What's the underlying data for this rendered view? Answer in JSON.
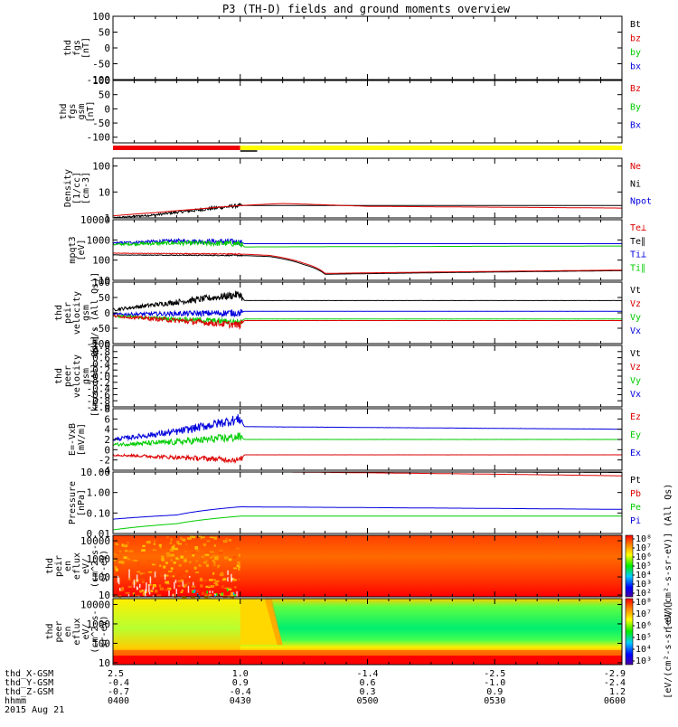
{
  "title": "P3 (TH-D) fields and ground moments overview",
  "chart_data": {
    "type": "line",
    "x_tick_labels": [
      "0400",
      "0430",
      "0500",
      "0530",
      "0600"
    ],
    "panels": [
      {
        "id": "fgs",
        "ylabel": [
          "thd",
          "fgs",
          "[nT]"
        ],
        "ylim": [
          -100,
          100
        ],
        "yscale": "linear",
        "yticks": [
          "100",
          "50",
          "0",
          "-50",
          "-100"
        ],
        "legend": [
          {
            "name": "Bt",
            "color": "#000000"
          },
          {
            "name": "bz",
            "color": "#dd0000"
          },
          {
            "name": "by",
            "color": "#00cc00"
          },
          {
            "name": "bx",
            "color": "#0000dd"
          }
        ],
        "series": []
      },
      {
        "id": "fgsgsm",
        "ylabel": [
          "thd",
          "fgs",
          "gsm",
          "[nT]"
        ],
        "ylim": [
          -120,
          100
        ],
        "yscale": "linear",
        "yticks": [
          "100",
          "50",
          "0",
          "-50",
          "-100"
        ],
        "legend": [
          {
            "name": "Bz",
            "color": "#dd0000"
          },
          {
            "name": "By",
            "color": "#00cc00"
          },
          {
            "name": "Bx",
            "color": "#0000dd"
          }
        ],
        "series": []
      },
      {
        "id": "density",
        "ylabel": [
          "Density",
          "[1/cc]",
          "[cm-3]"
        ],
        "ylim": [
          1,
          200
        ],
        "yscale": "log",
        "yticks": [
          "100",
          "10",
          "1"
        ],
        "legend": [
          {
            "name": "Ne",
            "color": "#dd0000"
          },
          {
            "name": "Ni",
            "color": "#000000"
          },
          {
            "name": "Npot",
            "color": "#0000dd"
          }
        ],
        "series": [
          {
            "name": "Ni",
            "color": "#000000",
            "x": [
              0,
              10,
              20,
              30
            ],
            "y": [
              1.0,
              1.3,
              2.0,
              3.0
            ],
            "noise": 0.05
          },
          {
            "name": "Ne",
            "color": "#dd0000",
            "x": [
              0,
              10,
              20,
              30,
              40,
              60,
              120
            ],
            "y": [
              1.2,
              1.6,
              2.2,
              3.0,
              3.6,
              2.8,
              2.4
            ],
            "noise": 0
          }
        ]
      },
      {
        "id": "temp",
        "ylabel": [
          "mpqt3",
          "[eV]"
        ],
        "ylim": [
          10,
          10000
        ],
        "yscale": "log",
        "yticks": [
          "10000",
          "1000",
          "100",
          "10"
        ],
        "legend": [
          {
            "name": "Te⊥",
            "color": "#dd0000"
          },
          {
            "name": "Te∥",
            "color": "#000000"
          },
          {
            "name": "Ti⊥",
            "color": "#0000dd"
          },
          {
            "name": "Ti∥",
            "color": "#00cc00"
          }
        ],
        "series": [
          {
            "name": "Ti⊥",
            "color": "#0000dd",
            "x": [
              0,
              15,
              30,
              31,
              120
            ],
            "y": [
              700,
              900,
              800,
              650,
              650
            ],
            "noise": 0.1
          },
          {
            "name": "Ti∥",
            "color": "#00cc00",
            "x": [
              0,
              15,
              30,
              31,
              120
            ],
            "y": [
              600,
              700,
              650,
              450,
              500
            ],
            "noise": 0.1
          },
          {
            "name": "Te∥",
            "color": "#000000",
            "x": [
              0,
              30,
              37,
              45,
              50,
              120
            ],
            "y": [
              180,
              170,
              150,
              60,
              20,
              30
            ],
            "noise": 0.02
          },
          {
            "name": "Te⊥",
            "color": "#dd0000",
            "x": [
              0,
              30,
              37,
              45,
              50,
              120
            ],
            "y": [
              220,
              200,
              170,
              70,
              22,
              32
            ],
            "noise": 0.02
          }
        ]
      },
      {
        "id": "vel",
        "ylabel": [
          "thd",
          "peir",
          "velocity",
          "gsm",
          "[km/s (All Qs)]"
        ],
        "ylim": [
          -100,
          100
        ],
        "yscale": "linear",
        "yticks": [
          "100",
          "50",
          "0",
          "-50",
          "-100"
        ],
        "legend": [
          {
            "name": "Vt",
            "color": "#000000"
          },
          {
            "name": "Vz",
            "color": "#dd0000"
          },
          {
            "name": "Vy",
            "color": "#00cc00"
          },
          {
            "name": "Vx",
            "color": "#0000dd"
          }
        ],
        "series": [
          {
            "name": "Vt",
            "color": "#000000",
            "x": [
              0,
              15,
              30,
              31,
              120
            ],
            "y": [
              10,
              35,
              60,
              40,
              40
            ],
            "noise": 9
          },
          {
            "name": "Vx",
            "color": "#0000dd",
            "x": [
              0,
              30,
              31,
              120
            ],
            "y": [
              -5,
              0,
              5,
              5
            ],
            "noise": 8
          },
          {
            "name": "Vy",
            "color": "#00cc00",
            "x": [
              0,
              30,
              31,
              120
            ],
            "y": [
              -10,
              -30,
              -20,
              -20
            ],
            "noise": 7
          },
          {
            "name": "Vz",
            "color": "#dd0000",
            "x": [
              0,
              30,
              31,
              120
            ],
            "y": [
              -10,
              -40,
              -25,
              -25
            ],
            "noise": 8
          }
        ]
      },
      {
        "id": "vele",
        "ylabel": [
          "thd",
          "peer",
          "velocity",
          "gsm",
          "[km/s (All Qs)]"
        ],
        "ylim": [
          -1,
          1
        ],
        "yscale": "linear",
        "yticks": [
          "1.0",
          "0.8",
          "0.6",
          "0.4",
          "0.2",
          "0.0",
          "-0.2",
          "-0.4",
          "-0.6",
          "-0.8",
          "-1.0"
        ],
        "legend": [
          {
            "name": "Vt",
            "color": "#000000"
          },
          {
            "name": "Vz",
            "color": "#dd0000"
          },
          {
            "name": "Vy",
            "color": "#00cc00"
          },
          {
            "name": "Vx",
            "color": "#0000dd"
          }
        ],
        "series": []
      },
      {
        "id": "efield",
        "ylabel": [
          "E=-VxB",
          "[mV/m]"
        ],
        "ylim": [
          -4,
          8
        ],
        "yscale": "linear",
        "yticks": [
          "8",
          "6",
          "4",
          "2",
          "0",
          "-2",
          "-4"
        ],
        "legend": [
          {
            "name": "Ez",
            "color": "#dd0000"
          },
          {
            "name": "Ey",
            "color": "#00cc00"
          },
          {
            "name": "Ex",
            "color": "#0000dd"
          }
        ],
        "series": [
          {
            "name": "Ex",
            "color": "#0000dd",
            "x": [
              0,
              15,
              30,
              31,
              120
            ],
            "y": [
              2,
              3.5,
              6,
              4.5,
              4.0
            ],
            "noise": 0.7
          },
          {
            "name": "Ey",
            "color": "#00cc00",
            "x": [
              0,
              15,
              30,
              31,
              120
            ],
            "y": [
              1,
              1.5,
              2.5,
              2.0,
              2.0
            ],
            "noise": 0.6
          },
          {
            "name": "Ez",
            "color": "#dd0000",
            "x": [
              0,
              15,
              30,
              31,
              120
            ],
            "y": [
              -1,
              -1.5,
              -2,
              -1.0,
              -1.0
            ],
            "noise": 0.4
          }
        ]
      },
      {
        "id": "pressure",
        "ylabel": [
          "Pressure",
          "[nPa]"
        ],
        "ylim": [
          0.01,
          10
        ],
        "yscale": "log",
        "yticks": [
          "10.00",
          "1.00",
          "0.10",
          "0.01"
        ],
        "legend": [
          {
            "name": "Pt",
            "color": "#000000"
          },
          {
            "name": "Pb",
            "color": "#dd0000"
          },
          {
            "name": "Pe",
            "color": "#00cc00"
          },
          {
            "name": "Pi",
            "color": "#0000dd"
          }
        ],
        "series": [
          {
            "name": "Pt",
            "color": "#000000",
            "x": [
              0,
              30,
              120
            ],
            "y": [
              11,
              11,
              9.5
            ],
            "noise": 0
          },
          {
            "name": "Pb",
            "color": "#dd0000",
            "x": [
              0,
              30,
              120
            ],
            "y": [
              10.5,
              10.5,
              6.5
            ],
            "noise": 0
          },
          {
            "name": "Pi",
            "color": "#0000dd",
            "x": [
              0,
              15,
              30,
              120
            ],
            "y": [
              0.05,
              0.08,
              0.2,
              0.15
            ],
            "noise": 0
          },
          {
            "name": "Pe",
            "color": "#00cc00",
            "x": [
              0,
              15,
              30,
              120
            ],
            "y": [
              0.015,
              0.03,
              0.07,
              0.07
            ],
            "noise": 0
          }
        ]
      },
      {
        "id": "ionspec",
        "type": "heatmap",
        "ylabel": [
          "thd",
          "peir",
          "en",
          "eflux",
          "eV/",
          "(cm^2-s-",
          "sr-eV)"
        ],
        "ylim": [
          8,
          20000
        ],
        "yscale": "log",
        "yticks": [
          "10000",
          "1000",
          "100",
          "10"
        ],
        "colorbar_ticks": [
          "10^8",
          "10^7",
          "10^6",
          "10^5",
          "10^4",
          "10^3",
          "10^2"
        ],
        "colorbar_label": "[eV/(cm^2-s-sr-eV)] (All Qs)",
        "series": []
      },
      {
        "id": "elspec",
        "type": "heatmap",
        "ylabel": [
          "thd",
          "peer",
          "en",
          "eflux",
          "eV/",
          "(cm^2-s-",
          "sr-eV)"
        ],
        "ylim": [
          8,
          20000
        ],
        "yscale": "log",
        "yticks": [
          "10000",
          "1000",
          "100",
          "10"
        ],
        "colorbar_ticks": [
          "10^8",
          "10^7",
          "10^6",
          "10^5",
          "10^4",
          "10^3"
        ],
        "colorbar_label": "[eV/(cm^2-s-sr-eV)]",
        "series": []
      }
    ],
    "footer_labels": [
      "thd_X-GSM",
      "thd_Y-GSM",
      "thd_Z-GSM",
      "hhmm",
      "2015 Aug 21"
    ],
    "footer_rows": [
      [
        "2.5",
        "1.0",
        "-1.4",
        "-2.5",
        "-2.9"
      ],
      [
        "-0.4",
        "0.9",
        "0.6",
        "-1.0",
        "-2.4"
      ],
      [
        "-0.7",
        "-0.4",
        "0.3",
        "0.9",
        "1.2"
      ]
    ],
    "colors": {
      "mode_bar_1": "#ee0000",
      "mode_bar_2": "#ffff00"
    }
  }
}
